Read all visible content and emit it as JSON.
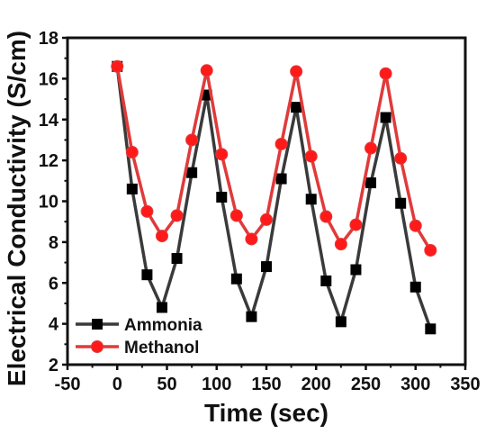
{
  "chart_data": {
    "type": "line",
    "title": "",
    "xlabel": "Time (sec)",
    "ylabel": "Electrical Conductivity (S/cm)",
    "xlim": [
      -50,
      350
    ],
    "ylim": [
      2,
      18
    ],
    "xticks": [
      -50,
      0,
      50,
      100,
      150,
      200,
      250,
      300,
      350
    ],
    "yticks": [
      2,
      4,
      6,
      8,
      10,
      12,
      14,
      16,
      18
    ],
    "grid": false,
    "legend_position": "bottom-left",
    "series": [
      {
        "name": "Ammonia",
        "color": "#3a3a3a",
        "marker": "square",
        "x": [
          0,
          15,
          30,
          45,
          60,
          75,
          90,
          105,
          120,
          135,
          150,
          165,
          180,
          195,
          210,
          225,
          240,
          255,
          270,
          285,
          300,
          315
        ],
        "y": [
          16.6,
          10.6,
          6.4,
          4.8,
          7.2,
          11.4,
          15.2,
          10.2,
          6.2,
          4.35,
          6.8,
          11.1,
          14.6,
          10.1,
          6.1,
          4.1,
          6.65,
          10.9,
          14.1,
          9.9,
          5.8,
          3.75
        ]
      },
      {
        "name": "Methanol",
        "color": "#e03a3a",
        "marker": "circle",
        "x": [
          0,
          15,
          30,
          45,
          60,
          75,
          90,
          105,
          120,
          135,
          150,
          165,
          180,
          195,
          210,
          225,
          240,
          255,
          270,
          285,
          300,
          315
        ],
        "y": [
          16.6,
          12.4,
          9.5,
          8.3,
          9.3,
          13.0,
          16.4,
          12.3,
          9.3,
          8.15,
          9.1,
          12.8,
          16.35,
          12.2,
          9.25,
          7.9,
          8.85,
          12.6,
          16.25,
          12.1,
          8.8,
          7.6
        ]
      }
    ]
  }
}
